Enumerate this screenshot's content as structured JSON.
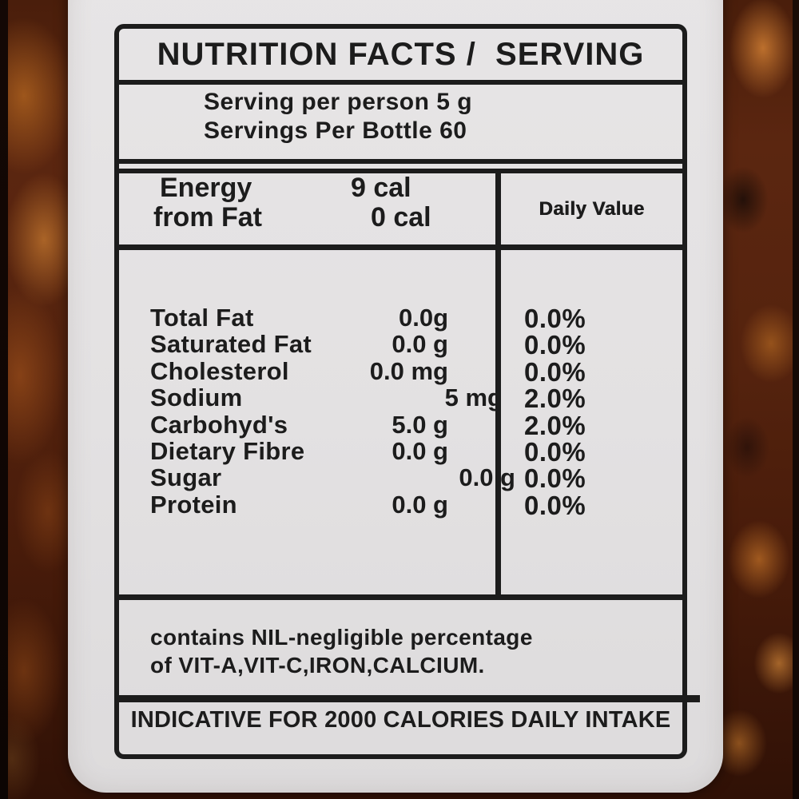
{
  "label": {
    "title": "NUTRITION FACTS /  SERVING",
    "serving": {
      "per_person": "Serving per person 5 g",
      "per_bottle": "Servings Per Bottle 60"
    },
    "energy": {
      "rows": [
        {
          "name": "Energy",
          "value": "9 cal"
        },
        {
          "name": "from Fat",
          "value": "0 cal"
        }
      ],
      "daily_value_header": "Daily Value"
    },
    "nutrients": [
      {
        "name": "Total Fat",
        "amount": "0.0g",
        "daily_value": "0.0%"
      },
      {
        "name": "Saturated Fat",
        "amount": "0.0 g",
        "daily_value": "0.0%"
      },
      {
        "name": "Cholesterol",
        "amount": "0.0 mg",
        "daily_value": "0.0%"
      },
      {
        "name": "Sodium",
        "amount": "5 mg",
        "daily_value": "2.0%"
      },
      {
        "name": "Carbohyd's",
        "amount": "5.0 g",
        "daily_value": "2.0%"
      },
      {
        "name": "Dietary Fibre",
        "amount": "0.0 g",
        "daily_value": "0.0%"
      },
      {
        "name": "Sugar",
        "amount": "0.0 g",
        "daily_value": "0.0%"
      },
      {
        "name": "Protein",
        "amount": "0.0 g",
        "daily_value": "0.0%"
      }
    ],
    "vitamins_note": {
      "line1": "contains NIL-negligible percentage",
      "line2": "of VIT-A,VIT-C,IRON,CALCIUM."
    },
    "footer": "INDICATIVE FOR 2000 CALORIES DAILY INTAKE"
  },
  "colors": {
    "ink": "#1c1c1c",
    "label_background": "#e3e1e2",
    "jar_amber": "#8a4418",
    "jar_dark": "#2b1208"
  }
}
